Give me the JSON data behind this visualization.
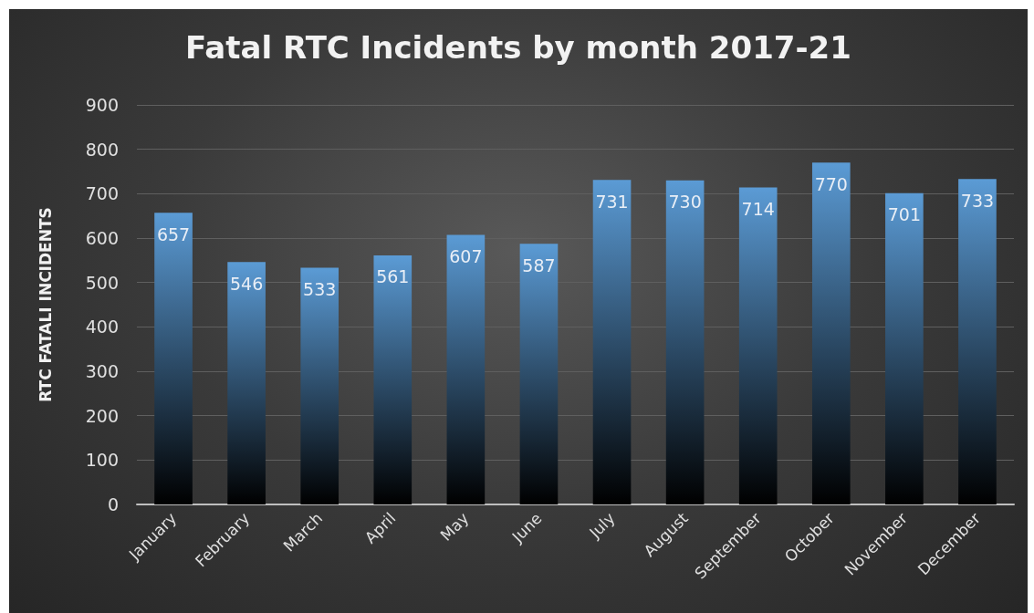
{
  "chart_data": {
    "type": "bar",
    "title": "Fatal RTC Incidents by month 2017-21",
    "ylabel": "RTC FATALI INCIDENTS",
    "categories": [
      "January",
      "February",
      "March",
      "April",
      "May",
      "June",
      "July",
      "August",
      "September",
      "October",
      "November",
      "December"
    ],
    "values": [
      657,
      546,
      533,
      561,
      607,
      587,
      731,
      730,
      714,
      770,
      701,
      733
    ],
    "color": "#5b9bd5",
    "ylim": [
      0,
      900
    ],
    "yticks": [
      0,
      100,
      200,
      300,
      400,
      500,
      600,
      700,
      800,
      900
    ],
    "grid": "y",
    "data_labels": true
  }
}
